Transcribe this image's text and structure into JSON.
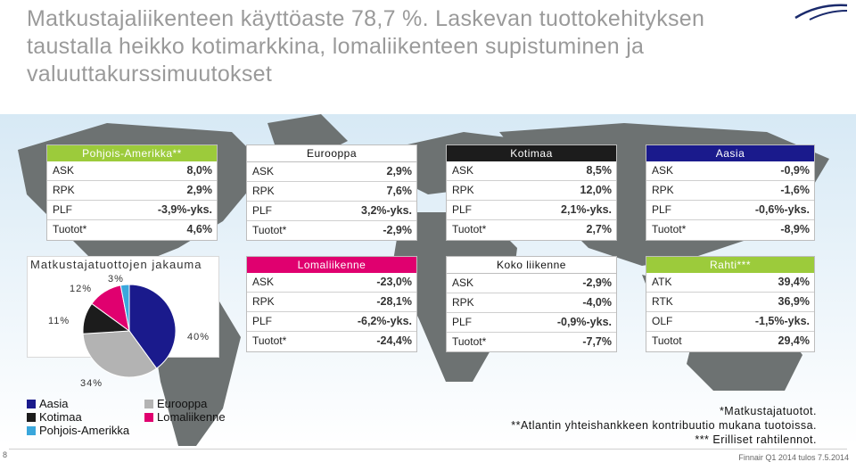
{
  "title": "Matkustajaliikenteen käyttöaste 78,7 %. Laskevan tuottokehityksen taustalla heikko kotimarkkina, lomaliikenteen supistuminen ja valuuttakurssimuutokset",
  "colors": {
    "title": "#9a9a9a",
    "asia": "#1a1a8c",
    "europe": "#b3b3b3",
    "domestic": "#1c1c1c",
    "leisure": "#e0006f",
    "north_america": "#3aa7dc",
    "cargo": "#9ccb3b"
  },
  "panels": {
    "north_america": {
      "header": "Pohjois-Amerikka**",
      "rows": [
        {
          "label": "ASK",
          "value": "8,0%"
        },
        {
          "label": "RPK",
          "value": "2,9%"
        },
        {
          "label": "PLF",
          "value": "-3,9%-yks."
        },
        {
          "label": "Tuotot*",
          "value": "4,6%"
        }
      ]
    },
    "europe": {
      "header": "Eurooppa",
      "rows": [
        {
          "label": "ASK",
          "value": "2,9%"
        },
        {
          "label": "RPK",
          "value": "7,6%"
        },
        {
          "label": "PLF",
          "value": "3,2%-yks."
        },
        {
          "label": "Tuotot*",
          "value": "-2,9%"
        }
      ]
    },
    "domestic": {
      "header": "Kotimaa",
      "rows": [
        {
          "label": "ASK",
          "value": "8,5%"
        },
        {
          "label": "RPK",
          "value": "12,0%"
        },
        {
          "label": "PLF",
          "value": "2,1%-yks."
        },
        {
          "label": "Tuotot*",
          "value": "2,7%"
        }
      ]
    },
    "asia": {
      "header": "Aasia",
      "rows": [
        {
          "label": "ASK",
          "value": "-0,9%"
        },
        {
          "label": "RPK",
          "value": "-1,6%"
        },
        {
          "label": "PLF",
          "value": "-0,6%-yks."
        },
        {
          "label": "Tuotot*",
          "value": "-8,9%"
        }
      ]
    },
    "leisure": {
      "header": "Lomaliikenne",
      "rows": [
        {
          "label": "ASK",
          "value": "-23,0%"
        },
        {
          "label": "RPK",
          "value": "-28,1%"
        },
        {
          "label": "PLF",
          "value": "-6,2%-yks."
        },
        {
          "label": "Tuotot*",
          "value": "-24,4%"
        }
      ]
    },
    "total": {
      "header": "Koko liikenne",
      "rows": [
        {
          "label": "ASK",
          "value": "-2,9%"
        },
        {
          "label": "RPK",
          "value": "-4,0%"
        },
        {
          "label": "PLF",
          "value": "-0,9%-yks."
        },
        {
          "label": "Tuotot*",
          "value": "-7,7%"
        }
      ]
    },
    "cargo": {
      "header": "Rahti***",
      "rows": [
        {
          "label": "ATK",
          "value": "39,4%"
        },
        {
          "label": "RTK",
          "value": "36,9%"
        },
        {
          "label": "OLF",
          "value": "-1,5%-yks."
        },
        {
          "label": "Tuotot",
          "value": "29,4%"
        }
      ]
    }
  },
  "chart_data": {
    "type": "pie",
    "title": "Matkustajatuottojen jakauma",
    "slices": [
      {
        "name": "Aasia",
        "value": 40,
        "label": "40%",
        "color": "#1a1a8c"
      },
      {
        "name": "Eurooppa",
        "value": 34,
        "label": "34%",
        "color": "#b3b3b3"
      },
      {
        "name": "Kotimaa",
        "value": 11,
        "label": "11%",
        "color": "#1c1c1c"
      },
      {
        "name": "Lomaliikenne",
        "value": 12,
        "label": "12%",
        "color": "#e0006f"
      },
      {
        "name": "Pohjois-Amerikka",
        "value": 3,
        "label": "3%",
        "color": "#3aa7dc"
      }
    ]
  },
  "notes": [
    "*Matkustajatuotot.",
    "**Atlantin yhteishankkeen kontribuutio mukana tuotoissa.",
    "*** Erilliset rahtilennot."
  ],
  "page_number": "8",
  "footer": "Finnair Q1 2014 tulos 7.5.2014"
}
